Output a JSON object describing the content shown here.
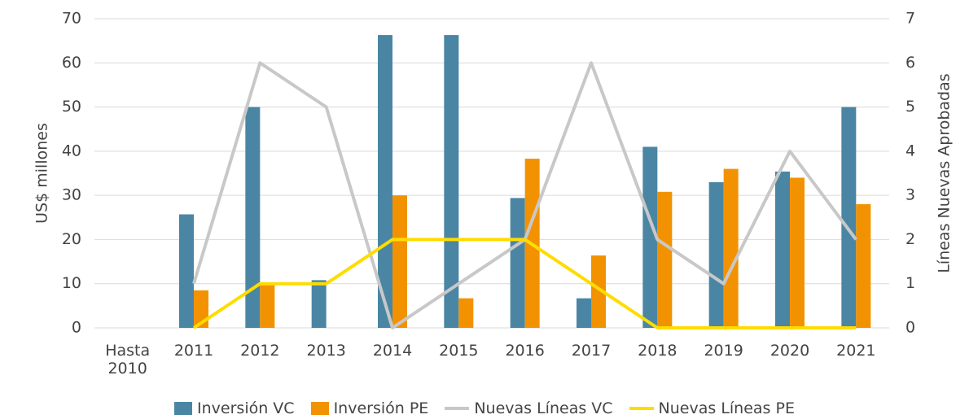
{
  "chart_data": {
    "type": "bar_line",
    "categories": [
      "Hasta 2010",
      "2011",
      "2012",
      "2013",
      "2014",
      "2015",
      "2016",
      "2017",
      "2018",
      "2019",
      "2020",
      "2021"
    ],
    "ylabel": "US$ millones",
    "y2label": "Líneas Nuevas Aprobadas",
    "ylim": [
      0,
      70
    ],
    "yticks": [
      0,
      10,
      20,
      30,
      40,
      50,
      60,
      70
    ],
    "y2lim": [
      0,
      7
    ],
    "y2ticks": [
      0,
      1,
      2,
      3,
      4,
      5,
      6,
      7
    ],
    "grid": true,
    "legend": "bottom",
    "series": [
      {
        "name": "Inversión VC",
        "type": "bar",
        "color": "#4a86a3",
        "values": [
          0,
          25.7,
          50,
          10.8,
          66.3,
          66.3,
          29.4,
          6.7,
          41,
          33,
          35.4,
          50
        ]
      },
      {
        "name": "Inversión PE",
        "type": "bar",
        "color": "#f39200",
        "values": [
          0,
          8.5,
          9.8,
          0,
          30,
          6.7,
          38.3,
          16.4,
          30.8,
          36,
          34,
          28
        ]
      },
      {
        "name": "Nuevas Líneas VC",
        "type": "line",
        "axis": "y2",
        "color": "#c8c8c8",
        "values": [
          null,
          1,
          6,
          5,
          0,
          1,
          2,
          6,
          2,
          1,
          4,
          2
        ]
      },
      {
        "name": "Nuevas Líneas PE",
        "type": "line",
        "axis": "y2",
        "color": "#ffdc00",
        "values": [
          null,
          0,
          1,
          1,
          2,
          2,
          2,
          1,
          0,
          0,
          0,
          0
        ]
      }
    ]
  }
}
